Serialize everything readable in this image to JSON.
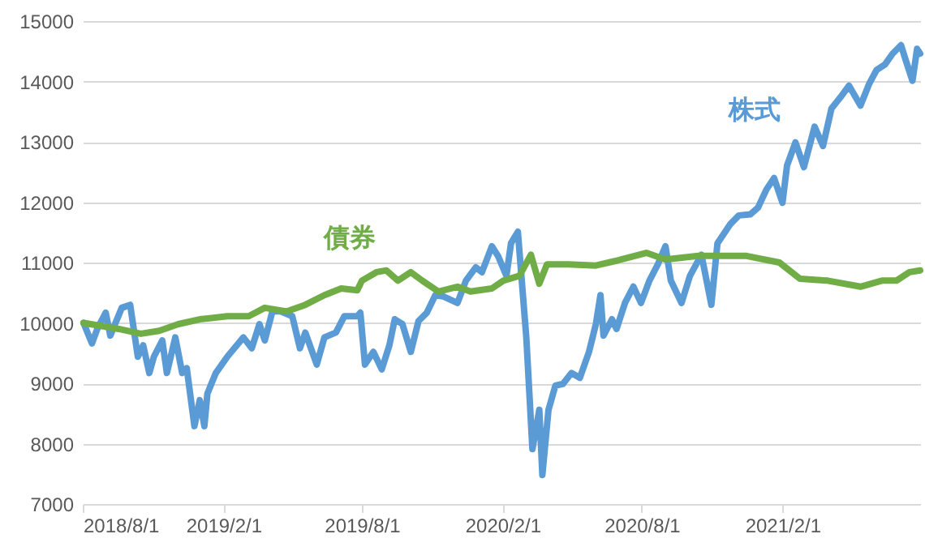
{
  "chart_data": {
    "type": "line",
    "xlim": [
      "2018-08-01",
      "2021-07-31"
    ],
    "ylim": [
      7000,
      15000
    ],
    "xticks": [
      {
        "value": "2018-08-01",
        "label": "2018/8/1"
      },
      {
        "value": "2019-02-01",
        "label": "2019/2/1"
      },
      {
        "value": "2019-08-01",
        "label": "2019/8/1"
      },
      {
        "value": "2020-02-01",
        "label": "2020/2/1"
      },
      {
        "value": "2020-08-01",
        "label": "2020/8/1"
      },
      {
        "value": "2021-02-01",
        "label": "2021/2/1"
      }
    ],
    "yticks": [
      7000,
      8000,
      9000,
      10000,
      11000,
      12000,
      13000,
      14000,
      15000
    ],
    "grid": "y",
    "series": [
      {
        "name": "株式",
        "color": "#5b9bd5",
        "x": [
          "2018-08-02",
          "2018-08-13",
          "2018-08-20",
          "2018-08-31",
          "2018-09-06",
          "2018-09-21",
          "2018-10-02",
          "2018-10-12",
          "2018-10-19",
          "2018-10-27",
          "2018-11-02",
          "2018-11-13",
          "2018-11-19",
          "2018-11-30",
          "2018-12-09",
          "2018-12-15",
          "2018-12-25",
          "2019-01-01",
          "2019-01-07",
          "2019-01-11",
          "2019-01-22",
          "2019-02-06",
          "2019-02-27",
          "2019-03-10",
          "2019-03-20",
          "2019-03-27",
          "2019-04-06",
          "2019-04-17",
          "2019-05-02",
          "2019-05-12",
          "2019-05-19",
          "2019-06-03",
          "2019-06-13",
          "2019-06-28",
          "2019-07-09",
          "2019-07-26",
          "2019-07-30",
          "2019-08-05",
          "2019-08-16",
          "2019-08-27",
          "2019-09-06",
          "2019-09-13",
          "2019-09-23",
          "2019-10-04",
          "2019-10-14",
          "2019-10-25",
          "2019-11-05",
          "2019-11-15",
          "2019-12-04",
          "2019-12-15",
          "2019-12-28",
          "2020-01-05",
          "2020-01-18",
          "2020-01-26",
          "2020-02-06",
          "2020-02-12",
          "2020-02-21",
          "2020-03-03",
          "2020-03-11",
          "2020-03-20",
          "2020-03-24",
          "2020-04-01",
          "2020-04-10",
          "2020-04-20",
          "2020-05-01",
          "2020-05-12",
          "2020-05-24",
          "2020-06-02",
          "2020-06-08",
          "2020-06-12",
          "2020-06-23",
          "2020-06-29",
          "2020-07-10",
          "2020-07-21",
          "2020-07-31",
          "2020-08-11",
          "2020-08-22",
          "2020-09-01",
          "2020-09-08",
          "2020-09-22",
          "2020-10-03",
          "2020-10-18",
          "2020-10-31",
          "2020-11-08",
          "2020-11-25",
          "2020-12-06",
          "2020-12-21",
          "2020-12-31",
          "2021-01-11",
          "2021-01-21",
          "2021-02-01",
          "2021-02-07",
          "2021-02-18",
          "2021-03-01",
          "2021-03-15",
          "2021-03-26",
          "2021-04-06",
          "2021-04-18",
          "2021-04-29",
          "2021-05-14",
          "2021-05-25",
          "2021-06-04",
          "2021-06-15",
          "2021-06-25",
          "2021-07-06",
          "2021-07-12",
          "2021-07-21",
          "2021-07-27",
          "2021-07-31"
        ],
        "values": [
          10000,
          9660,
          9900,
          10170,
          9790,
          10250,
          10300,
          9440,
          9630,
          9170,
          9440,
          9710,
          9170,
          9760,
          9170,
          9250,
          8290,
          8720,
          8290,
          8830,
          9170,
          9440,
          9760,
          9580,
          9980,
          9710,
          10190,
          10190,
          10110,
          9580,
          9840,
          9310,
          9760,
          9840,
          10110,
          10110,
          10170,
          9310,
          9520,
          9230,
          9630,
          10060,
          9980,
          9520,
          10030,
          10170,
          10460,
          10440,
          10330,
          10700,
          10920,
          10840,
          11270,
          11110,
          10780,
          11320,
          11510,
          9760,
          7910,
          8560,
          7480,
          8560,
          8960,
          8990,
          9170,
          9090,
          9520,
          9980,
          10460,
          9790,
          10060,
          9900,
          10330,
          10600,
          10330,
          10700,
          10970,
          11270,
          10700,
          10330,
          10780,
          11130,
          10300,
          11320,
          11640,
          11780,
          11800,
          11910,
          12210,
          12400,
          11990,
          12610,
          12990,
          12580,
          13250,
          12930,
          13550,
          13740,
          13930,
          13600,
          13950,
          14190,
          14280,
          14460,
          14600,
          14360,
          14010,
          14540,
          14460
        ]
      },
      {
        "name": "債券",
        "color": "#70ad47",
        "x": [
          "2018-08-02",
          "2018-09-17",
          "2018-10-16",
          "2018-11-09",
          "2018-12-04",
          "2019-01-01",
          "2019-02-06",
          "2019-03-06",
          "2019-03-27",
          "2019-04-25",
          "2019-05-19",
          "2019-06-13",
          "2019-07-05",
          "2019-07-26",
          "2019-08-01",
          "2019-08-20",
          "2019-09-02",
          "2019-09-17",
          "2019-10-04",
          "2019-10-19",
          "2019-11-09",
          "2019-12-04",
          "2019-12-21",
          "2020-01-18",
          "2020-02-02",
          "2020-02-23",
          "2020-03-09",
          "2020-03-20",
          "2020-03-30",
          "2020-04-27",
          "2020-06-02",
          "2020-06-29",
          "2020-08-07",
          "2020-09-01",
          "2020-10-14",
          "2020-11-19",
          "2020-12-16",
          "2021-01-28",
          "2021-02-24",
          "2021-04-01",
          "2021-05-14",
          "2021-06-11",
          "2021-06-30",
          "2021-07-17",
          "2021-07-31"
        ],
        "values": [
          10000,
          9900,
          9820,
          9870,
          9980,
          10060,
          10110,
          10110,
          10250,
          10190,
          10300,
          10460,
          10570,
          10540,
          10700,
          10840,
          10870,
          10700,
          10840,
          10700,
          10520,
          10600,
          10520,
          10570,
          10700,
          10780,
          11130,
          10650,
          10970,
          10970,
          10950,
          11030,
          11160,
          11050,
          11110,
          11110,
          11110,
          11000,
          10730,
          10700,
          10600,
          10700,
          10700,
          10840,
          10870
        ]
      }
    ]
  }
}
